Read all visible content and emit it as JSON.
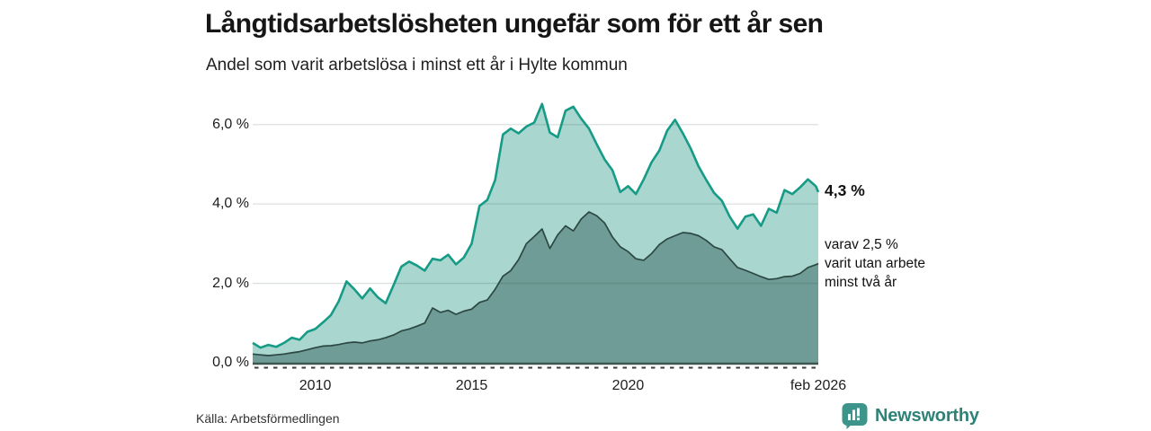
{
  "annotations": {
    "latest_total": "4,3 %",
    "secondary_note": "varav 2,5 %\nvarit utan arbete\nminst två år"
  },
  "footer": {
    "source": "Källa: Arbetsförmedlingen",
    "brand": "Newsworthy"
  },
  "colors": {
    "line_primary": "#169b86",
    "fill_primary": "#a9d6ce",
    "line_secondary": "#2c4843",
    "fill_secondary": "#6f9c96",
    "grid": "rgba(40,60,55,0.16)",
    "axis": "#3f5650",
    "brand_teal": "#3d948a",
    "brand_text": "#2e8276"
  },
  "chart_data": {
    "type": "area",
    "title": "Långtidsarbetslösheten ungefär som för ett år sen",
    "subtitle": "Andel som varit arbetslösa i minst ett år i Hylte kommun",
    "unit": "%",
    "grid": "horizontal",
    "legend_position": "none",
    "x_range": [
      2008,
      2026.08
    ],
    "ylim": [
      0,
      6.65
    ],
    "y_ticks": [
      {
        "value": 6,
        "label": "6,0 %"
      },
      {
        "value": 4,
        "label": "4,0 %"
      },
      {
        "value": 2,
        "label": "2,0 %"
      },
      {
        "value": 0,
        "label": "0,0 %"
      }
    ],
    "x_ticks": [
      {
        "value": 2010,
        "label": "2010"
      },
      {
        "value": 2015,
        "label": "2015"
      },
      {
        "value": 2020,
        "label": "2020"
      },
      {
        "value": 2026.08,
        "label": "feb 2026"
      }
    ],
    "series": [
      {
        "name": "Andel som varit arbetslösa i minst ett år",
        "end_value": 4.3,
        "points": [
          [
            2008.0,
            0.5
          ],
          [
            2008.25,
            0.38
          ],
          [
            2008.5,
            0.45
          ],
          [
            2008.75,
            0.4
          ],
          [
            2009.0,
            0.5
          ],
          [
            2009.25,
            0.63
          ],
          [
            2009.5,
            0.58
          ],
          [
            2009.75,
            0.78
          ],
          [
            2010.0,
            0.85
          ],
          [
            2010.25,
            1.02
          ],
          [
            2010.5,
            1.2
          ],
          [
            2010.75,
            1.55
          ],
          [
            2011.0,
            2.05
          ],
          [
            2011.25,
            1.85
          ],
          [
            2011.5,
            1.62
          ],
          [
            2011.75,
            1.87
          ],
          [
            2012.0,
            1.65
          ],
          [
            2012.25,
            1.5
          ],
          [
            2012.5,
            1.95
          ],
          [
            2012.75,
            2.42
          ],
          [
            2013.0,
            2.55
          ],
          [
            2013.25,
            2.45
          ],
          [
            2013.5,
            2.32
          ],
          [
            2013.75,
            2.62
          ],
          [
            2014.0,
            2.58
          ],
          [
            2014.25,
            2.72
          ],
          [
            2014.5,
            2.48
          ],
          [
            2014.75,
            2.65
          ],
          [
            2015.0,
            3.0
          ],
          [
            2015.25,
            3.95
          ],
          [
            2015.5,
            4.1
          ],
          [
            2015.75,
            4.6
          ],
          [
            2016.0,
            5.75
          ],
          [
            2016.25,
            5.9
          ],
          [
            2016.5,
            5.78
          ],
          [
            2016.75,
            5.95
          ],
          [
            2017.0,
            6.05
          ],
          [
            2017.25,
            6.52
          ],
          [
            2017.5,
            5.8
          ],
          [
            2017.75,
            5.68
          ],
          [
            2018.0,
            6.35
          ],
          [
            2018.25,
            6.45
          ],
          [
            2018.5,
            6.15
          ],
          [
            2018.75,
            5.9
          ],
          [
            2019.0,
            5.5
          ],
          [
            2019.25,
            5.12
          ],
          [
            2019.5,
            4.85
          ],
          [
            2019.75,
            4.3
          ],
          [
            2020.0,
            4.45
          ],
          [
            2020.25,
            4.25
          ],
          [
            2020.5,
            4.62
          ],
          [
            2020.75,
            5.05
          ],
          [
            2021.0,
            5.35
          ],
          [
            2021.25,
            5.85
          ],
          [
            2021.5,
            6.12
          ],
          [
            2021.75,
            5.78
          ],
          [
            2022.0,
            5.4
          ],
          [
            2022.25,
            4.95
          ],
          [
            2022.5,
            4.6
          ],
          [
            2022.75,
            4.28
          ],
          [
            2023.0,
            4.08
          ],
          [
            2023.25,
            3.68
          ],
          [
            2023.5,
            3.38
          ],
          [
            2023.75,
            3.68
          ],
          [
            2024.0,
            3.74
          ],
          [
            2024.25,
            3.45
          ],
          [
            2024.5,
            3.88
          ],
          [
            2024.75,
            3.78
          ],
          [
            2025.0,
            4.35
          ],
          [
            2025.25,
            4.25
          ],
          [
            2025.5,
            4.42
          ],
          [
            2025.75,
            4.62
          ],
          [
            2026.0,
            4.45
          ],
          [
            2026.08,
            4.3
          ]
        ]
      },
      {
        "name": "varav varit utan arbete minst två år",
        "end_value": 2.5,
        "points": [
          [
            2008.0,
            0.22
          ],
          [
            2008.25,
            0.2
          ],
          [
            2008.5,
            0.18
          ],
          [
            2008.75,
            0.2
          ],
          [
            2009.0,
            0.22
          ],
          [
            2009.25,
            0.25
          ],
          [
            2009.5,
            0.28
          ],
          [
            2009.75,
            0.33
          ],
          [
            2010.0,
            0.38
          ],
          [
            2010.25,
            0.42
          ],
          [
            2010.5,
            0.43
          ],
          [
            2010.75,
            0.46
          ],
          [
            2011.0,
            0.5
          ],
          [
            2011.25,
            0.52
          ],
          [
            2011.5,
            0.5
          ],
          [
            2011.75,
            0.55
          ],
          [
            2012.0,
            0.58
          ],
          [
            2012.25,
            0.63
          ],
          [
            2012.5,
            0.7
          ],
          [
            2012.75,
            0.8
          ],
          [
            2013.0,
            0.85
          ],
          [
            2013.25,
            0.92
          ],
          [
            2013.5,
            1.0
          ],
          [
            2013.75,
            1.38
          ],
          [
            2014.0,
            1.27
          ],
          [
            2014.25,
            1.32
          ],
          [
            2014.5,
            1.22
          ],
          [
            2014.75,
            1.3
          ],
          [
            2015.0,
            1.35
          ],
          [
            2015.25,
            1.52
          ],
          [
            2015.5,
            1.58
          ],
          [
            2015.75,
            1.85
          ],
          [
            2016.0,
            2.18
          ],
          [
            2016.25,
            2.32
          ],
          [
            2016.5,
            2.6
          ],
          [
            2016.75,
            3.0
          ],
          [
            2017.0,
            3.18
          ],
          [
            2017.25,
            3.37
          ],
          [
            2017.5,
            2.88
          ],
          [
            2017.75,
            3.22
          ],
          [
            2018.0,
            3.45
          ],
          [
            2018.25,
            3.32
          ],
          [
            2018.5,
            3.62
          ],
          [
            2018.75,
            3.8
          ],
          [
            2019.0,
            3.7
          ],
          [
            2019.25,
            3.52
          ],
          [
            2019.5,
            3.17
          ],
          [
            2019.75,
            2.92
          ],
          [
            2020.0,
            2.8
          ],
          [
            2020.25,
            2.62
          ],
          [
            2020.5,
            2.58
          ],
          [
            2020.75,
            2.75
          ],
          [
            2021.0,
            2.98
          ],
          [
            2021.25,
            3.12
          ],
          [
            2021.5,
            3.2
          ],
          [
            2021.75,
            3.28
          ],
          [
            2022.0,
            3.26
          ],
          [
            2022.25,
            3.2
          ],
          [
            2022.5,
            3.08
          ],
          [
            2022.75,
            2.92
          ],
          [
            2023.0,
            2.85
          ],
          [
            2023.25,
            2.62
          ],
          [
            2023.5,
            2.4
          ],
          [
            2023.75,
            2.33
          ],
          [
            2024.0,
            2.25
          ],
          [
            2024.25,
            2.17
          ],
          [
            2024.5,
            2.1
          ],
          [
            2024.75,
            2.12
          ],
          [
            2025.0,
            2.17
          ],
          [
            2025.25,
            2.18
          ],
          [
            2025.5,
            2.25
          ],
          [
            2025.75,
            2.4
          ],
          [
            2026.0,
            2.47
          ],
          [
            2026.08,
            2.5
          ]
        ]
      }
    ]
  }
}
